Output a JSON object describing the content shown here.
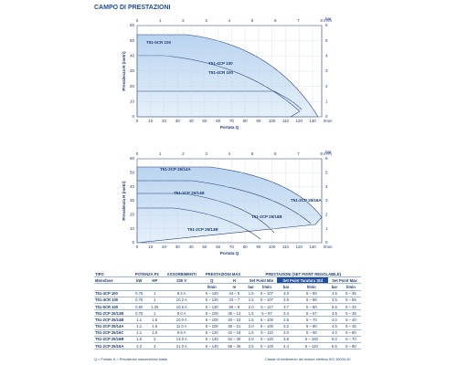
{
  "header": {
    "title": "CAMPO DI PRESTAZIONI"
  },
  "charts": [
    {
      "top_unit": "m³/h",
      "top_ticks": [
        "0",
        "1",
        "2",
        "3",
        "4",
        "5",
        "6",
        "7",
        "8"
      ],
      "bottom_unit": "l/min",
      "bottom_ticks": [
        "0",
        "10",
        "20",
        "30",
        "40",
        "50",
        "60",
        "70",
        "80",
        "90",
        "100",
        "110",
        "120",
        "130"
      ],
      "y_ticks": [
        "0",
        "10",
        "20",
        "30",
        "40",
        "50",
        "60"
      ],
      "y2_ticks": [
        "0",
        "1",
        "2",
        "3",
        "4",
        "5",
        "6"
      ],
      "y2_unit": "bar",
      "y_label": "Prevalenza H (metri)",
      "x_label": "Portata Q",
      "curves": [
        "T51-5CR 100",
        "T51-4CP 100",
        "T51-4CR 100"
      ]
    },
    {
      "top_unit": "m³/h",
      "top_ticks": [
        "0",
        "1",
        "2",
        "3",
        "4",
        "5",
        "6",
        "7",
        "8"
      ],
      "bottom_unit": "l/min",
      "bottom_ticks": [
        "0",
        "10",
        "20",
        "30",
        "40",
        "50",
        "60",
        "70",
        "80",
        "90",
        "100",
        "110",
        "120",
        "130"
      ],
      "y_ticks": [
        "0",
        "10",
        "20",
        "30",
        "40",
        "50",
        "60"
      ],
      "y2_ticks": [
        "0",
        "1",
        "2",
        "3",
        "4",
        "5",
        "6"
      ],
      "y2_unit": "bar",
      "y_label": "Prevalenza H (metri)",
      "x_label": "Portata Q",
      "curves": [
        "T51-2CP 25/14A",
        "T51-2CP 25/14B",
        "T51-2CP 25/16A",
        "T51-2CP 25/16B",
        "T51-2CP 25/13B"
      ]
    }
  ],
  "table": {
    "head1": [
      "TIPO",
      "POTENZA P2",
      "ASSORBIMENTI",
      "PRESTAZIONI MAX",
      "PRESTAZIONI (SET POINT REGOLABILE)"
    ],
    "head2": [
      "Monofase",
      "kW",
      "HP",
      "230 V",
      "Q",
      "H",
      "Set Point Min",
      "Set Point Taratura Std",
      "Set Point Max"
    ],
    "head3": [
      "l/min",
      "m",
      "bar",
      "l/min",
      "bar",
      "l/min",
      "bar",
      "l/min"
    ],
    "rows": [
      [
        "T51-4CP 100",
        "0.75",
        "1",
        "9.2 A",
        "5 – 120",
        "44 – 5",
        "1.5",
        "5 – 107",
        "3.0",
        "5 – 80",
        "4.5",
        "5 – 35"
      ],
      [
        "T51-4CR 100",
        "0.75",
        "1",
        "10.2 A",
        "5 – 120",
        "43 – 7",
        "1.5",
        "5 – 107",
        "2.6",
        "5 – 85",
        "3.5",
        "5 – 55"
      ],
      [
        "T51-5CR 100",
        "0.90",
        "1.25",
        "10.6 A",
        "5 – 130",
        "56 – 8",
        "2.0",
        "5 – 117",
        "3.7",
        "5 – 80",
        "5.5",
        "5 – 33"
      ],
      [
        "T51-2CP 25/13B",
        "0.75",
        "1",
        "9.0 A",
        "5 – 100",
        "36 – 13",
        "1.5",
        "5 – 97",
        "2.4",
        "5 – 67",
        "3.5",
        "5 – 35"
      ],
      [
        "T51-2CP 25/14B",
        "1.1",
        "1.5",
        "10.0 A",
        "5 – 100",
        "40 – 22",
        "1.5",
        "5 – 100",
        "2.6",
        "5 – 70",
        "4.0",
        "5 – 40"
      ],
      [
        "T51-2CP 25/14A",
        "1.1",
        "1.5",
        "11.0 A",
        "5 – 100",
        "48 – 21",
        "2.0",
        "5 – 100",
        "3.2",
        "5 – 80",
        "4.5",
        "5 – 45"
      ],
      [
        "T51-2CP 25/16C",
        "1.1",
        "1.5",
        "9.5 A",
        "5 – 120",
        "42 – 18",
        "1.5",
        "5 – 110",
        "3.0",
        "5 – 90",
        "4.0",
        "5 – 60"
      ],
      [
        "T51-2CP 25/16B",
        "1.5",
        "2",
        "13.0 A",
        "5 – 140",
        "52 – 30",
        "2.0",
        "5 – 120",
        "3.8",
        "5 – 100",
        "5.0",
        "5 – 70"
      ],
      [
        "T51-2CP 25/16A",
        "2.2",
        "3",
        "21.0 A",
        "5 – 140",
        "58 – 36",
        "2.5",
        "5 – 140",
        "4.4",
        "5 – 120",
        "5.5",
        "5 – 90"
      ]
    ]
  },
  "footer": {
    "left": "Q = Portata  H = Prevalenza manometrica totale",
    "right": "Classe di rendimento del motore elettrico IEC 60034-30"
  }
}
